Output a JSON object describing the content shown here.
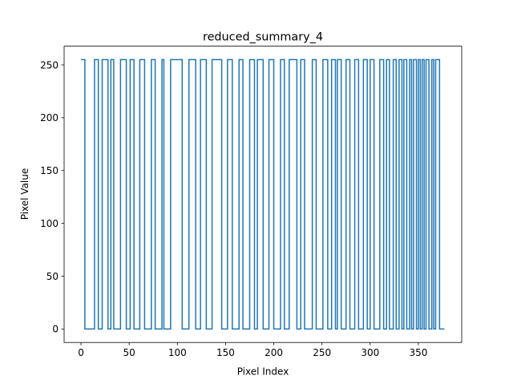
{
  "chart_data": {
    "type": "line",
    "title": "reduced_summary_4",
    "xlabel": "Pixel Index",
    "ylabel": "Pixel Value",
    "xlim": [
      -17.5,
      395
    ],
    "ylim": [
      -12.75,
      267.75
    ],
    "xticks": [
      0,
      50,
      100,
      150,
      200,
      250,
      300,
      350
    ],
    "yticks": [
      0,
      50,
      100,
      150,
      200,
      250
    ],
    "grid": false,
    "legend": "none",
    "line_color": "#1f77b4",
    "step": "post",
    "series": [
      {
        "x": [
          0,
          4,
          14,
          18,
          22,
          28,
          31,
          34,
          41,
          47,
          51,
          55,
          61,
          66,
          73,
          77,
          84,
          86,
          93,
          105,
          112,
          119,
          124,
          130,
          136,
          146,
          152,
          157,
          164,
          168,
          175,
          180,
          183,
          189,
          195,
          200,
          207,
          211,
          216,
          224,
          228,
          232,
          240,
          244,
          251,
          256,
          260,
          264,
          266,
          270,
          275,
          279,
          284,
          288,
          293,
          297,
          300,
          304,
          310,
          314,
          317,
          320,
          324,
          327,
          330,
          333,
          335,
          338,
          341,
          343,
          345,
          348,
          350,
          352,
          354,
          356,
          358,
          361,
          364,
          366,
          368,
          372,
          377
        ],
        "y": [
          255,
          0,
          255,
          0,
          255,
          0,
          255,
          0,
          255,
          0,
          255,
          0,
          255,
          0,
          255,
          0,
          255,
          0,
          255,
          0,
          255,
          0,
          255,
          0,
          255,
          0,
          255,
          0,
          255,
          0,
          255,
          0,
          255,
          0,
          255,
          0,
          255,
          0,
          255,
          0,
          255,
          0,
          255,
          0,
          255,
          0,
          255,
          0,
          255,
          0,
          255,
          0,
          255,
          0,
          255,
          0,
          255,
          0,
          255,
          0,
          255,
          0,
          255,
          0,
          255,
          0,
          255,
          0,
          255,
          0,
          255,
          0,
          255,
          0,
          255,
          0,
          255,
          0,
          255,
          0,
          255,
          0,
          0
        ]
      }
    ]
  }
}
